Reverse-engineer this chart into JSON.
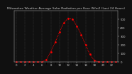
{
  "title": "Milwaukee Weather Average Solar Radiation per Hour W/m2 (Last 24 Hours)",
  "x_hours": [
    0,
    1,
    2,
    3,
    4,
    5,
    6,
    7,
    8,
    9,
    10,
    11,
    12,
    13,
    14,
    15,
    16,
    17,
    18,
    19,
    20,
    21,
    22,
    23
  ],
  "y_values": [
    0,
    0,
    0,
    0,
    0,
    0,
    2,
    30,
    120,
    230,
    350,
    460,
    510,
    500,
    420,
    320,
    200,
    90,
    20,
    2,
    0,
    0,
    0,
    0
  ],
  "line_color": "#ff0000",
  "bg_color": "#101010",
  "plot_bg": "#101010",
  "ylim": [
    0,
    600
  ],
  "xlim": [
    -0.5,
    23.5
  ],
  "grid_color": "#555555",
  "title_fontsize": 3.2,
  "tick_fontsize": 2.8,
  "label_color": "#cccccc",
  "ytick_labels": [
    "0",
    "100",
    "200",
    "300",
    "400",
    "500"
  ],
  "ytick_vals": [
    0,
    100,
    200,
    300,
    400,
    500
  ],
  "xtick_vals": [
    0,
    1,
    2,
    3,
    4,
    5,
    6,
    7,
    8,
    9,
    10,
    11,
    12,
    13,
    14,
    15,
    16,
    17,
    18,
    19,
    20,
    21,
    22,
    23
  ],
  "grid_xticks": [
    0,
    2,
    4,
    6,
    8,
    10,
    12,
    14,
    16,
    18,
    20,
    22
  ]
}
